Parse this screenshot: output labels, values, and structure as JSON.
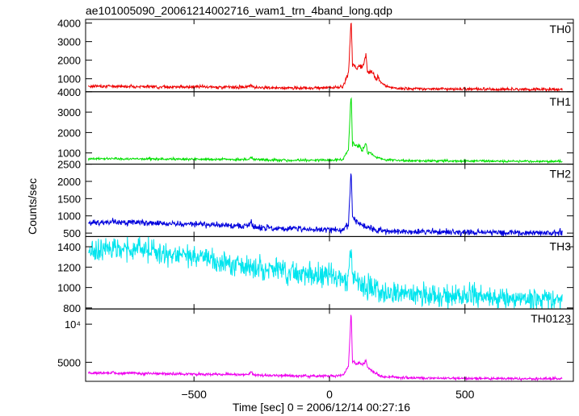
{
  "chart_data": {
    "type": "line",
    "title": "ae101005090_20061214002716_wam1_trn_4band_long.qdp",
    "xlabel": "Time [sec] 0 = 2006/12/14 00:27:16",
    "ylabel": "Counts/sec",
    "xlim": [
      -900,
      900
    ],
    "xticks": [
      -500,
      0,
      500
    ],
    "xtick_labels": [
      "−500",
      "0",
      "500"
    ],
    "grid": false,
    "panels": [
      {
        "name": "TH0",
        "color": "#ee0000",
        "ylim": [
          300,
          4200
        ],
        "yticks": [
          1000,
          2000,
          3000,
          4000
        ],
        "ytick_labels": [
          "1000",
          "2000",
          "3000",
          "4000"
        ],
        "x": [
          -890,
          -800,
          -700,
          -600,
          -500,
          -400,
          -300,
          -290,
          -280,
          -200,
          -100,
          0,
          50,
          70,
          80,
          85,
          90,
          100,
          110,
          120,
          130,
          135,
          140,
          150,
          160,
          170,
          180,
          190,
          200,
          220,
          250,
          300,
          400,
          500,
          600,
          700,
          860
        ],
        "y": [
          600,
          600,
          580,
          560,
          560,
          550,
          550,
          700,
          560,
          500,
          500,
          520,
          550,
          1300,
          4200,
          1700,
          1800,
          1500,
          1700,
          1600,
          2000,
          2300,
          1400,
          1400,
          1300,
          1000,
          1100,
          800,
          700,
          550,
          480,
          470,
          450,
          450,
          430,
          430,
          420
        ],
        "noise": 40
      },
      {
        "name": "TH1",
        "color": "#00e000",
        "ylim": [
          450,
          4000
        ],
        "yticks": [
          1000,
          2000,
          3000,
          4000
        ],
        "ytick_labels": [
          "1000",
          "2000",
          "3000",
          "4000"
        ],
        "x": [
          -890,
          -800,
          -700,
          -600,
          -500,
          -400,
          -300,
          -290,
          -280,
          -200,
          -100,
          0,
          50,
          70,
          80,
          85,
          90,
          100,
          110,
          120,
          130,
          135,
          140,
          150,
          160,
          170,
          200,
          250,
          300,
          400,
          500,
          600,
          700,
          860
        ],
        "y": [
          720,
          720,
          700,
          700,
          690,
          680,
          680,
          800,
          690,
          650,
          640,
          650,
          680,
          1200,
          4000,
          1400,
          1500,
          1300,
          1400,
          1100,
          1300,
          1500,
          1000,
          1000,
          900,
          800,
          680,
          630,
          620,
          610,
          600,
          600,
          590,
          590
        ],
        "noise": 30
      },
      {
        "name": "TH2",
        "color": "#0000dd",
        "ylim": [
          400,
          2500
        ],
        "yticks": [
          500,
          1000,
          1500,
          2000,
          2500
        ],
        "ytick_labels": [
          "500",
          "1000",
          "1500",
          "2000",
          "2500"
        ],
        "x": [
          -890,
          -800,
          -700,
          -600,
          -500,
          -400,
          -300,
          -290,
          -280,
          -200,
          -100,
          0,
          50,
          70,
          80,
          85,
          90,
          100,
          110,
          120,
          140,
          160,
          200,
          250,
          300,
          400,
          500,
          600,
          700,
          860
        ],
        "y": [
          800,
          820,
          800,
          780,
          760,
          720,
          690,
          800,
          680,
          640,
          620,
          600,
          610,
          750,
          2400,
          1000,
          900,
          850,
          750,
          700,
          650,
          600,
          560,
          550,
          540,
          530,
          520,
          520,
          510,
          510
        ],
        "noise": 45
      },
      {
        "name": "TH3",
        "color": "#00e5ee",
        "ylim": [
          790,
          1500
        ],
        "yticks": [
          800,
          1000,
          1200,
          1400
        ],
        "ytick_labels": [
          "800",
          "1000",
          "1200",
          "1400"
        ],
        "x": [
          -890,
          -800,
          -700,
          -600,
          -500,
          -400,
          -300,
          -200,
          -100,
          0,
          50,
          70,
          80,
          85,
          90,
          100,
          150,
          200,
          250,
          300,
          400,
          500,
          600,
          700,
          860
        ],
        "y": [
          1360,
          1380,
          1370,
          1340,
          1300,
          1250,
          1210,
          1180,
          1140,
          1100,
          1080,
          1100,
          1470,
          1100,
          1080,
          1050,
          1000,
          970,
          950,
          930,
          920,
          910,
          900,
          895,
          890
        ],
        "noise": 55
      },
      {
        "name": "TH0123",
        "color": "#ee00ee",
        "ylim": [
          2500,
          12000
        ],
        "yticks": [
          5000,
          10000
        ],
        "ytick_labels": [
          "5000",
          "10⁴"
        ],
        "x": [
          -890,
          -800,
          -700,
          -600,
          -500,
          -400,
          -300,
          -290,
          -280,
          -200,
          -100,
          0,
          50,
          70,
          80,
          85,
          90,
          100,
          110,
          120,
          130,
          135,
          140,
          150,
          160,
          170,
          200,
          250,
          300,
          400,
          500,
          600,
          700,
          860
        ],
        "y": [
          3600,
          3600,
          3550,
          3500,
          3450,
          3400,
          3350,
          3800,
          3350,
          3250,
          3200,
          3200,
          3300,
          4500,
          11800,
          5000,
          5200,
          4700,
          5000,
          4600,
          5000,
          5400,
          4300,
          4100,
          3800,
          3500,
          3100,
          3000,
          2950,
          2900,
          2880,
          2870,
          2860,
          2850
        ],
        "noise": 90
      }
    ]
  }
}
